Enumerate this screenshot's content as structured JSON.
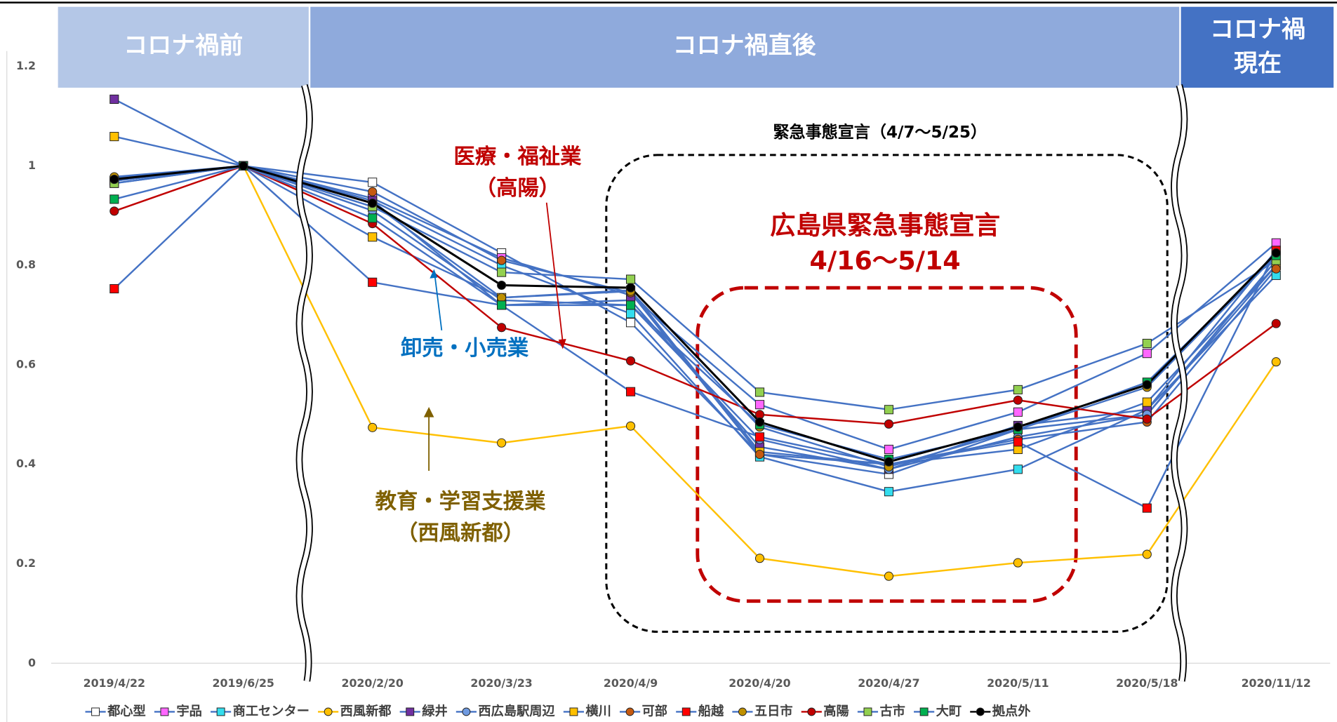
{
  "chart_data": {
    "type": "line",
    "bands": [
      {
        "label": "コロナ禍前"
      },
      {
        "label": "コロナ禍直後"
      },
      {
        "label": [
          "コロナ禍",
          "現在"
        ]
      }
    ],
    "annotations": [
      "緊急事態宣言（4/7〜5/25）",
      "広島県緊急事態宣言",
      "4/16〜5/14",
      "医療・福祉業",
      "（高陽）",
      "卸売・小売業",
      "教育・学習支援業",
      "（西風新都）"
    ],
    "categories": [
      "2019/4/22",
      "2019/6/25",
      "2020/2/20",
      "2020/3/23",
      "2020/4/9",
      "2020/4/20",
      "2020/4/27",
      "2020/5/11",
      "2020/5/18",
      "2020/11/12"
    ],
    "ylim": [
      0,
      1.2
    ],
    "yticks": [
      0,
      0.2,
      0.4,
      0.6,
      0.8,
      1,
      1.2
    ],
    "grid": false,
    "legend": "bottom",
    "series": [
      {
        "name": "都心型",
        "color": "#4472c4",
        "marker_color": "#ffffff",
        "marker": "square",
        "values": [
          0.97,
          1,
          0.967,
          0.825,
          0.685,
          0.42,
          0.38,
          0.47,
          0.5,
          0.8
        ]
      },
      {
        "name": "宇品",
        "color": "#4472c4",
        "marker_color": "#ff66ff",
        "marker": "square",
        "values": [
          0.965,
          1,
          0.935,
          0.815,
          0.74,
          0.52,
          0.43,
          0.505,
          0.623,
          0.845
        ]
      },
      {
        "name": "商工センター",
        "color": "#4472c4",
        "marker_color": "#33ddee",
        "marker": "square",
        "values": [
          0.97,
          1,
          0.93,
          0.8,
          0.703,
          0.415,
          0.345,
          0.39,
          0.51,
          0.78
        ]
      },
      {
        "name": "西風新都",
        "color": "#ffc000",
        "marker_color": "#ffc000",
        "marker": "circle",
        "values": [
          null,
          1,
          0.474,
          0.443,
          0.477,
          0.211,
          0.175,
          0.202,
          0.219,
          0.606
        ]
      },
      {
        "name": "緑井",
        "color": "#4472c4",
        "marker_color": "#7030a0",
        "marker": "square",
        "values": [
          1.134,
          1,
          0.93,
          0.72,
          0.73,
          0.435,
          0.39,
          0.478,
          0.51,
          0.83
        ]
      },
      {
        "name": "西広島駅周辺",
        "color": "#4472c4",
        "marker_color": "#6f9ae0",
        "marker": "circle",
        "values": [
          0.97,
          1,
          0.91,
          0.73,
          0.72,
          0.45,
          0.39,
          0.455,
          0.5,
          0.81
        ]
      },
      {
        "name": "横川",
        "color": "#4472c4",
        "marker_color": "#ffc000",
        "marker": "square",
        "values": [
          1.059,
          1,
          0.857,
          0.735,
          0.75,
          0.425,
          0.4,
          0.43,
          0.525,
          0.8
        ]
      },
      {
        "name": "可部",
        "color": "#4472c4",
        "marker_color": "#c55a11",
        "marker": "circle",
        "values": [
          0.975,
          1,
          0.948,
          0.81,
          0.745,
          0.42,
          0.4,
          0.45,
          0.485,
          0.793
        ]
      },
      {
        "name": "船越",
        "color": "#4472c4",
        "marker_color": "#ff0000",
        "marker": "square",
        "values": [
          0.753,
          1,
          0.766,
          0.72,
          0.546,
          0.455,
          0.4,
          0.445,
          0.312,
          0.83
        ]
      },
      {
        "name": "五日市",
        "color": "#4472c4",
        "marker_color": "#bf9000",
        "marker": "circle",
        "values": [
          0.978,
          1,
          0.925,
          0.735,
          0.748,
          0.475,
          0.395,
          0.47,
          0.555,
          0.82
        ]
      },
      {
        "name": "高陽",
        "color": "#c00000",
        "marker_color": "#c00000",
        "marker": "circle",
        "values": [
          0.909,
          1,
          0.884,
          0.675,
          0.608,
          0.5,
          0.481,
          0.529,
          0.491,
          0.683
        ]
      },
      {
        "name": "古市",
        "color": "#4472c4",
        "marker_color": "#92d050",
        "marker": "square",
        "values": [
          0.965,
          1,
          0.918,
          0.786,
          0.772,
          0.545,
          0.51,
          0.55,
          0.643,
          0.81
        ]
      },
      {
        "name": "大町",
        "color": "#4472c4",
        "marker_color": "#00b050",
        "marker": "square",
        "values": [
          0.933,
          1,
          0.895,
          0.72,
          0.72,
          0.48,
          0.41,
          0.47,
          0.565,
          0.82
        ]
      },
      {
        "name": "拠点外",
        "color": "#000000",
        "marker_color": "#000000",
        "marker": "circle",
        "values": [
          0.973,
          1,
          0.925,
          0.76,
          0.755,
          0.485,
          0.405,
          0.475,
          0.56,
          0.825
        ]
      }
    ]
  }
}
